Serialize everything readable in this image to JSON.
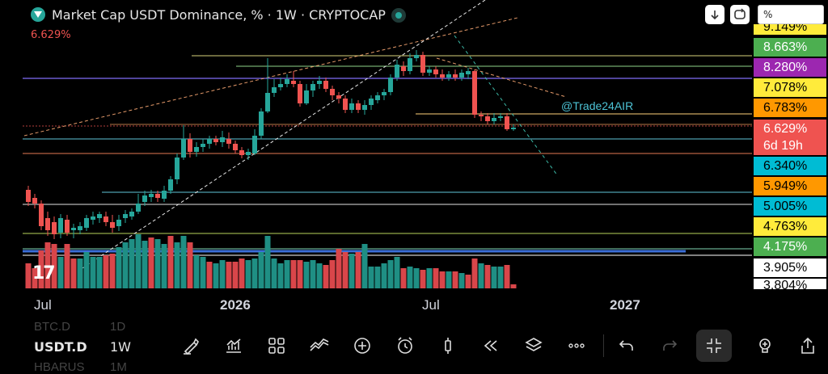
{
  "header": {
    "title": "Market Cap USDT Dominance, % · 1W · CRYPTOCAP",
    "price_readout": "6.629%",
    "scale_input_value": "%",
    "down_arrow_icon": "arrow-down-icon",
    "refresh_icon": "refresh-icon"
  },
  "watermark": {
    "author": "@Trade24AIR",
    "logo_text": "17"
  },
  "price_scale": [
    {
      "label": "9.149%",
      "bg": "#ffeb3b",
      "fg": "#000000",
      "partial": true
    },
    {
      "label": "8.663%",
      "bg": "#4caf50",
      "fg": "#ffffff"
    },
    {
      "label": "8.280%",
      "bg": "#9c27b0",
      "fg": "#ffffff"
    },
    {
      "label": "7.078%",
      "bg": "#ffeb3b",
      "fg": "#000000"
    },
    {
      "label": "6.783%",
      "bg": "#ff9800",
      "fg": "#000000"
    },
    {
      "label": "6.629%",
      "bg": "#ef5350",
      "fg": "#ffffff"
    },
    {
      "label": "6d 19h",
      "bg": "#ef5350",
      "fg": "#ffffff"
    },
    {
      "label": "6.340%",
      "bg": "#00bcd4",
      "fg": "#000000"
    },
    {
      "label": "5.949%",
      "bg": "#ff9800",
      "fg": "#000000"
    },
    {
      "label": "5.005%",
      "bg": "#00bcd4",
      "fg": "#000000"
    },
    {
      "label": "4.763%",
      "bg": "#ffeb3b",
      "fg": "#000000"
    },
    {
      "label": "4.175%",
      "bg": "#4caf50",
      "fg": "#ffffff"
    },
    {
      "label": "3.905%",
      "bg": "#ffffff",
      "fg": "#000000"
    },
    {
      "label": "3.804%",
      "bg": "#ffffff",
      "fg": "#000000",
      "partial": true
    }
  ],
  "time_axis": [
    "Jul",
    "2026",
    "Jul",
    "2027"
  ],
  "bottom": {
    "ghost_top_symbol": "BTC.D",
    "ghost_top_tf": "1D",
    "symbol": "USDT.D",
    "timeframe": "1W",
    "ghost_bottom_symbol": "HBARUS",
    "ghost_bottom_tf": "1M",
    "tools": [
      {
        "name": "brush-icon"
      },
      {
        "name": "indicators-icon"
      },
      {
        "name": "templates-icon"
      },
      {
        "name": "compare-icon"
      },
      {
        "name": "add-icon"
      },
      {
        "name": "alert-icon"
      },
      {
        "name": "candle-type-icon"
      },
      {
        "name": "replay-icon"
      },
      {
        "name": "layers-icon"
      },
      {
        "name": "more-icon"
      },
      {
        "name": "undo-icon"
      },
      {
        "name": "redo-icon"
      },
      {
        "name": "fullscreen-exit-icon"
      },
      {
        "name": "ideas-icon"
      },
      {
        "name": "share-icon"
      }
    ]
  },
  "colors": {
    "up": "#26a69a",
    "down": "#ef5350",
    "volume_up": "#1f8f84",
    "volume_down": "#d9464a"
  }
}
